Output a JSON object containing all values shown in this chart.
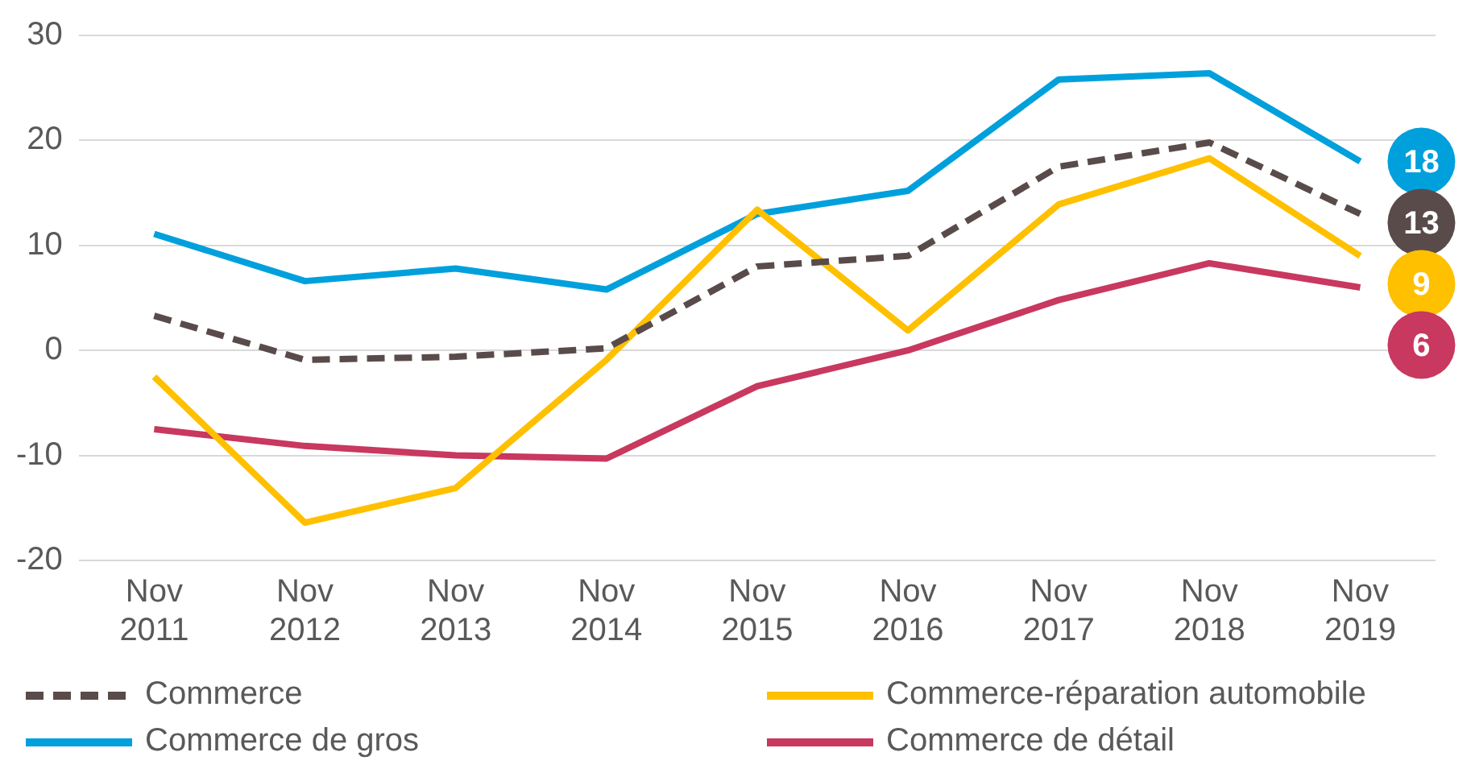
{
  "chart_data": {
    "type": "line",
    "categories": [
      "Nov 2011",
      "Nov 2012",
      "Nov 2013",
      "Nov 2014",
      "Nov 2015",
      "Nov 2016",
      "Nov 2017",
      "Nov 2018",
      "Nov 2019"
    ],
    "series": [
      {
        "name": "Commerce",
        "color": "#5a4b4b",
        "line_style": "dashed",
        "values": [
          3.3,
          -0.9,
          -0.6,
          0.2,
          8,
          9,
          17.5,
          19.8,
          13
        ],
        "value_labels": [
          null,
          null,
          null,
          null,
          null,
          null,
          null,
          null,
          "13"
        ]
      },
      {
        "name": "Commerce-réparation automobile",
        "color": "#ffc000",
        "line_style": "solid",
        "values": [
          -2.5,
          -16.4,
          -13.1,
          -0.9,
          13.4,
          1.9,
          13.9,
          18.3,
          9
        ],
        "value_labels": [
          null,
          null,
          null,
          null,
          null,
          null,
          null,
          null,
          "9"
        ]
      },
      {
        "name": "Commerce de gros",
        "color": "#00a0dc",
        "line_style": "solid",
        "values": [
          11.1,
          6.6,
          7.8,
          5.8,
          13,
          15.2,
          25.8,
          26.4,
          18
        ],
        "value_labels": [
          null,
          null,
          null,
          null,
          null,
          null,
          null,
          null,
          "18"
        ]
      },
      {
        "name": "Commerce de détail",
        "color": "#c8385f",
        "line_style": "solid",
        "values": [
          -7.5,
          -9.1,
          -10,
          -10.3,
          -3.4,
          0,
          4.8,
          8.3,
          6
        ],
        "value_labels": [
          null,
          null,
          null,
          null,
          null,
          null,
          null,
          null,
          "6"
        ]
      }
    ],
    "ylim": [
      -20,
      30
    ],
    "yticks": [
      -20,
      -10,
      0,
      10,
      20,
      30
    ],
    "grid": "y",
    "legend": "bottom",
    "marker": "none"
  }
}
